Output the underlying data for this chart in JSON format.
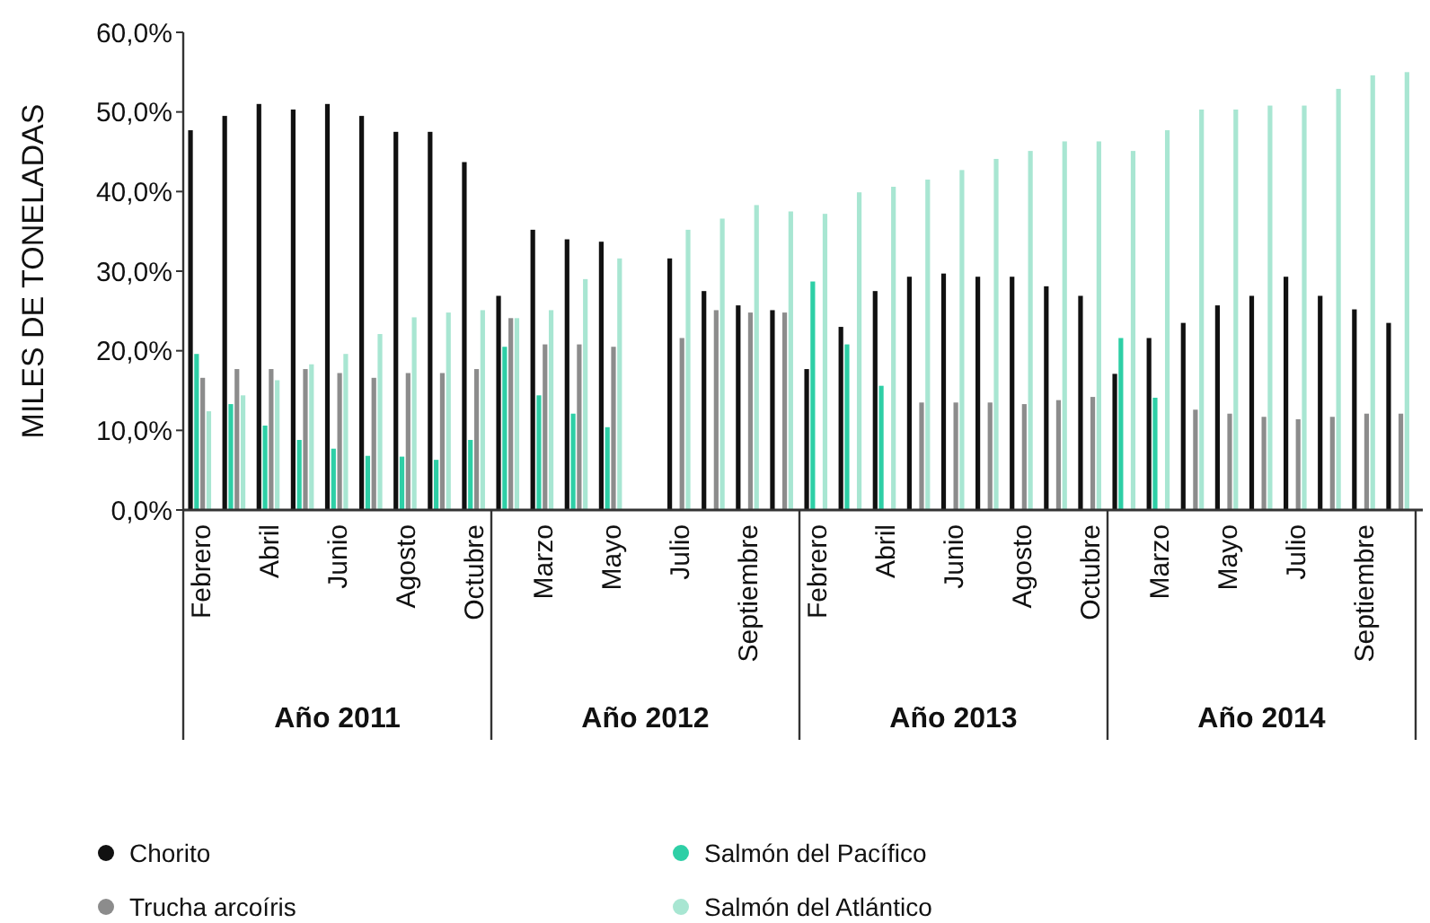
{
  "chart_data": {
    "type": "bar",
    "ylabel": "MILES DE TONELADAS",
    "categories": [
      "Febrero",
      null,
      "Abril",
      null,
      "Junio",
      null,
      "Agosto",
      null,
      "Octubre",
      null,
      "Marzo",
      null,
      "Mayo",
      null,
      "Julio",
      null,
      "Septiembre",
      null,
      "Febrero",
      null,
      "Abril",
      null,
      "Junio",
      null,
      "Agosto",
      null,
      "Octubre",
      null,
      "Marzo",
      null,
      "Mayo",
      null,
      "Julio",
      null,
      "Septiembre",
      null
    ],
    "series": [
      {
        "name": "Chorito",
        "color": "#111111",
        "values": [
          47.7,
          49.5,
          51,
          50.3,
          51,
          49.5,
          47.5,
          47.5,
          43.7,
          26.9,
          35.2,
          34,
          33.7,
          null,
          31.6,
          27.5,
          25.7,
          25.1,
          17.7,
          23,
          27.5,
          29.3,
          29.7,
          29.3,
          29.3,
          28.1,
          26.9,
          17.1,
          21.6,
          23.5,
          25.7,
          26.9,
          29.3,
          26.9,
          25.2,
          23.5
        ]
      },
      {
        "name": "Salmón del Pacífico",
        "color": "#2ecfa6",
        "values": [
          19.6,
          13.3,
          10.6,
          8.8,
          7.7,
          6.8,
          6.7,
          6.3,
          8.8,
          20.5,
          14.4,
          12.1,
          10.4,
          null,
          null,
          null,
          null,
          null,
          28.7,
          20.8,
          15.6,
          null,
          null,
          null,
          null,
          null,
          null,
          21.6,
          14.1,
          null,
          null,
          null,
          null,
          null,
          null,
          null
        ]
      },
      {
        "name": "Trucha arcoíris",
        "color": "#8c8c8c",
        "values": [
          16.6,
          17.7,
          17.7,
          17.7,
          17.2,
          16.6,
          17.2,
          17.2,
          17.7,
          24.1,
          20.8,
          20.8,
          20.5,
          null,
          21.6,
          25.1,
          24.8,
          24.8,
          null,
          null,
          null,
          13.5,
          13.5,
          13.5,
          13.3,
          13.8,
          14.2,
          null,
          null,
          12.6,
          12.1,
          11.7,
          11.4,
          11.7,
          12.1,
          12.1
        ]
      },
      {
        "name": "Salmón del Atlántico",
        "color": "#a8e6d2",
        "values": [
          12.4,
          14.4,
          16.3,
          18.3,
          19.6,
          22.1,
          24.2,
          24.8,
          25.1,
          24.1,
          25.1,
          29,
          31.6,
          null,
          35.2,
          36.6,
          38.3,
          37.5,
          37.2,
          39.9,
          40.6,
          41.5,
          42.7,
          44.1,
          45.1,
          46.3,
          46.3,
          45.1,
          47.7,
          50.3,
          50.3,
          50.8,
          50.8,
          52.9,
          54.6,
          55
        ]
      }
    ],
    "annotations": [
      "Año 2011",
      "Año 2012",
      "Año 2013",
      "Año 2014"
    ],
    "ylim": [
      0,
      60
    ],
    "yticks": [
      {
        "value": 0,
        "label": "0,0%"
      },
      {
        "value": 10,
        "label": "10,0%"
      },
      {
        "value": 20,
        "label": "20,0%"
      },
      {
        "value": 30,
        "label": "30,0%"
      },
      {
        "value": 40,
        "label": "40,0%"
      },
      {
        "value": 50,
        "label": "50,0%"
      },
      {
        "value": 60,
        "label": "60,0%"
      }
    ],
    "grid": false,
    "legend": "bottom"
  }
}
